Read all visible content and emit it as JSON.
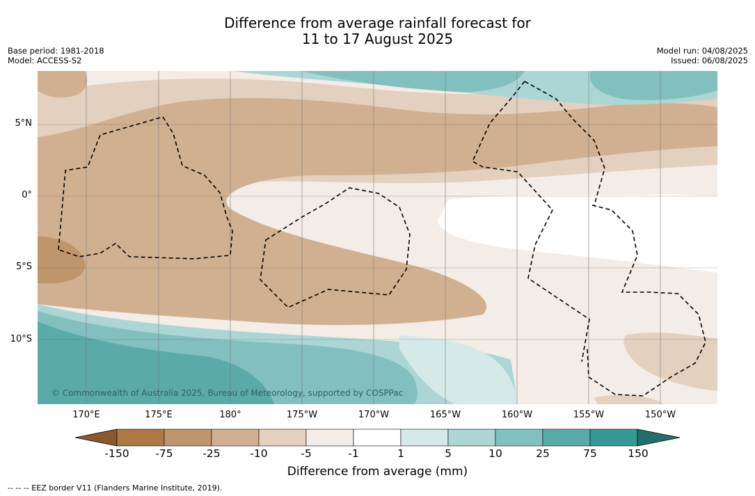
{
  "title": {
    "line1": "Difference from average rainfall forecast for",
    "line2": "11 to 17 August 2025"
  },
  "meta": {
    "base_period": "Base period: 1981-2018",
    "model": "Model: ACCESS-S2",
    "model_run": "Model run: 04/08/2025",
    "issued": "Issued: 06/08/2025"
  },
  "map": {
    "copyright": "© Commonwealth of Australia 2025, Bureau of Meteorology, supported by COSPPac",
    "lat_labels": [
      "5°N",
      "0°",
      "5°S",
      "10°S"
    ],
    "lon_labels": [
      "170°E",
      "175°E",
      "180°",
      "175°W",
      "170°W",
      "165°W",
      "160°W",
      "155°W",
      "150°W"
    ]
  },
  "colorbar": {
    "ticks": [
      "-150",
      "-75",
      "-25",
      "-10",
      "-5",
      "-1",
      "1",
      "5",
      "10",
      "25",
      "75",
      "150"
    ],
    "colors": [
      "#8b5a2b",
      "#ad7843",
      "#bf956b",
      "#d1b091",
      "#e3d0bf",
      "#f4ece6",
      "#ffffff",
      "#d5e9e8",
      "#abd6d5",
      "#82c0bf",
      "#5aaaaa",
      "#369895",
      "#246f6d"
    ],
    "title": "Difference from average (mm)"
  },
  "footnote": "--  --  -- EEZ border V11 (Flanders Marine Institute, 2019)."
}
